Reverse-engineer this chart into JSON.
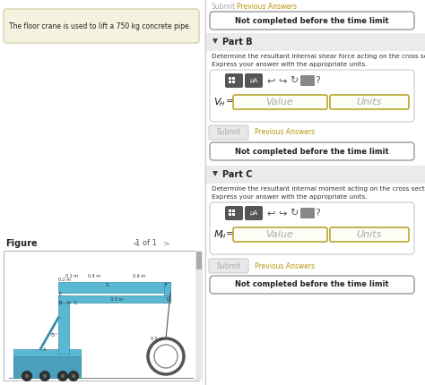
{
  "bg_color": "#f0f0f0",
  "white": "#ffffff",
  "right_panel_bg": "#ffffff",
  "left_panel_bg": "#f5f3e0",
  "left_text": "The floor crane is used to lift a 750 kg concrete pipe.",
  "figure_label": "Figure",
  "nav_text": "1 of 1",
  "top_submit_text": "Submit",
  "top_link_text": "Previous Answers",
  "top_button_text": "Not completed before the time limit",
  "part_b_label": "Part B",
  "part_b_desc1": "Determine the resultant internal shear force acting on the cross section at H",
  "part_b_desc2": "Express your answer with the appropriate units.",
  "part_b_value_placeholder": "Value",
  "part_b_units_placeholder": "Units",
  "part_b_submit": "Submit",
  "part_b_prev": "Previous Answers",
  "part_b_notcomplete": "Not completed before the time limit",
  "part_c_label": "Part C",
  "part_c_desc1": "Determine the resultant internal moment acting on the cross section at H.",
  "part_c_desc2": "Express your answer with the appropriate units.",
  "part_c_value_placeholder": "Value",
  "part_c_units_placeholder": "Units",
  "part_c_submit": "Submit",
  "part_c_prev": "Previous Answers",
  "part_c_notcomplete": "Not completed before the time limit",
  "divider_color": "#cccccc",
  "border_color": "#bbbbbb",
  "gold_color": "#b8960c",
  "button_bg": "#eeeeee",
  "input_border": "#b8a830",
  "input_bg": "#fdfdf5",
  "dark_btn_bg": "#555555",
  "notcomplete_border": "#999999",
  "triangle_color": "#444444",
  "part_bg": "#eeeeee",
  "scrollbar_color": "#aaaaaa"
}
